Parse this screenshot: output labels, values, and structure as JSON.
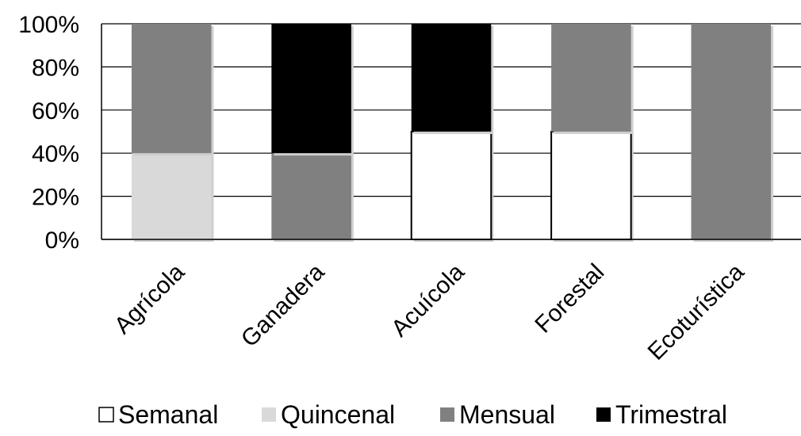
{
  "chart_data": {
    "type": "bar",
    "stacked": true,
    "percent": true,
    "categories": [
      "Agrícola",
      "Ganadera",
      "Acuícola",
      "Forestal",
      "Ecoturística"
    ],
    "series": [
      {
        "name": "Semanal",
        "color": "#ffffff",
        "values": [
          0,
          0,
          50,
          50,
          0
        ]
      },
      {
        "name": "Quincenal",
        "color": "#d9d9d9",
        "values": [
          40,
          0,
          0,
          0,
          0
        ]
      },
      {
        "name": "Mensual",
        "color": "#808080",
        "values": [
          60,
          40,
          0,
          50,
          100
        ]
      },
      {
        "name": "Trimestral",
        "color": "#000000",
        "values": [
          0,
          60,
          50,
          0,
          0
        ]
      }
    ],
    "yticks": [
      "0%",
      "20%",
      "40%",
      "60%",
      "80%",
      "100%"
    ],
    "ylim": [
      0,
      100
    ],
    "grid": true,
    "legend_position": "bottom",
    "title": "",
    "xlabel": "",
    "ylabel": ""
  }
}
